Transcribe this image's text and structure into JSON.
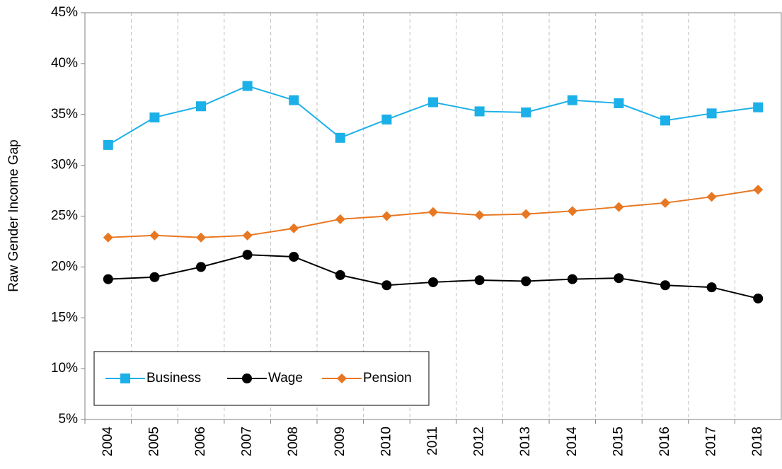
{
  "chart_data": {
    "type": "line",
    "y_label": "Raw Gender Income Gap",
    "categories": [
      "2004",
      "2005",
      "2006",
      "2007",
      "2008",
      "2009",
      "2010",
      "2011",
      "2012",
      "2013",
      "2014",
      "2015",
      "2016",
      "2017",
      "2018"
    ],
    "series": [
      {
        "name": "Business",
        "color": "#1cb0e8",
        "marker": "square",
        "values": [
          32.0,
          34.7,
          35.8,
          37.8,
          36.4,
          32.7,
          34.5,
          36.2,
          35.3,
          35.2,
          36.4,
          36.1,
          34.4,
          35.1,
          35.7
        ]
      },
      {
        "name": "Wage",
        "color": "#000000",
        "marker": "circle",
        "values": [
          18.8,
          19.0,
          20.0,
          21.2,
          21.0,
          19.2,
          18.2,
          18.5,
          18.7,
          18.6,
          18.8,
          18.9,
          18.2,
          18.0,
          16.9
        ]
      },
      {
        "name": "Pension",
        "color": "#e87722",
        "marker": "diamond",
        "values": [
          22.9,
          23.1,
          22.9,
          23.1,
          23.8,
          24.7,
          25.0,
          25.4,
          25.1,
          25.2,
          25.5,
          25.9,
          26.3,
          26.9,
          27.6
        ]
      }
    ],
    "ylim": [
      5,
      45
    ],
    "yticks": [
      {
        "value": 5,
        "label": "5%"
      },
      {
        "value": 10,
        "label": "10%"
      },
      {
        "value": 15,
        "label": "15%"
      },
      {
        "value": 20,
        "label": "20%"
      },
      {
        "value": 25,
        "label": "25%"
      },
      {
        "value": 30,
        "label": "30%"
      },
      {
        "value": 35,
        "label": "35%"
      },
      {
        "value": 40,
        "label": "40%"
      },
      {
        "value": 45,
        "label": "45%"
      }
    ],
    "legend_position": "lower left"
  }
}
